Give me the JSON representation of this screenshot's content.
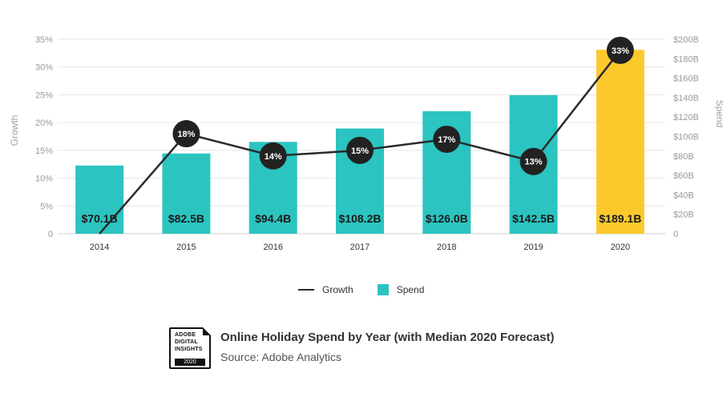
{
  "chart_data": {
    "type": "bar",
    "categories": [
      "2014",
      "2015",
      "2016",
      "2017",
      "2018",
      "2019",
      "2020"
    ],
    "series": [
      {
        "name": "Spend",
        "kind": "bar",
        "axis": "right",
        "values": [
          70.1,
          82.5,
          94.4,
          108.2,
          126.0,
          142.5,
          189.1
        ],
        "labels": [
          "$70.1B",
          "$82.5B",
          "$94.4B",
          "$108.2B",
          "$126.0B",
          "$142.5B",
          "$189.1B"
        ]
      },
      {
        "name": "Growth",
        "kind": "line",
        "axis": "left",
        "values": [
          0,
          18,
          14,
          15,
          17,
          13,
          33
        ],
        "labels": [
          "",
          "18%",
          "14%",
          "15%",
          "17%",
          "13%",
          "33%"
        ]
      }
    ],
    "bar_color": "#2bc4c0",
    "highlight_color": "#fcc92d",
    "highlight_index": 6,
    "line_color": "#2a2a2a",
    "marker_color": "#222222",
    "y_left": {
      "label": "Growth",
      "ticks": [
        "0",
        "5%",
        "10%",
        "15%",
        "20%",
        "25%",
        "30%",
        "35%"
      ],
      "ylim": [
        0,
        35
      ]
    },
    "y_right": {
      "label": "Spend",
      "ticks": [
        "0",
        "$20B",
        "$40B",
        "$60B",
        "$80B",
        "$100B",
        "$120B",
        "$140B",
        "$160B",
        "$180B",
        "$200B"
      ],
      "ylim": [
        0,
        200
      ]
    },
    "grid": true,
    "legend_position": "bottom"
  },
  "legend": {
    "growth_label": "Growth",
    "spend_label": "Spend"
  },
  "footer": {
    "badge_line1": "ADOBE",
    "badge_line2": "DIGITAL",
    "badge_line3": "INSIGHTS",
    "badge_year": "2020",
    "title": "Online Holiday Spend by Year (with Median 2020 Forecast)",
    "source": "Source: Adobe Analytics"
  }
}
